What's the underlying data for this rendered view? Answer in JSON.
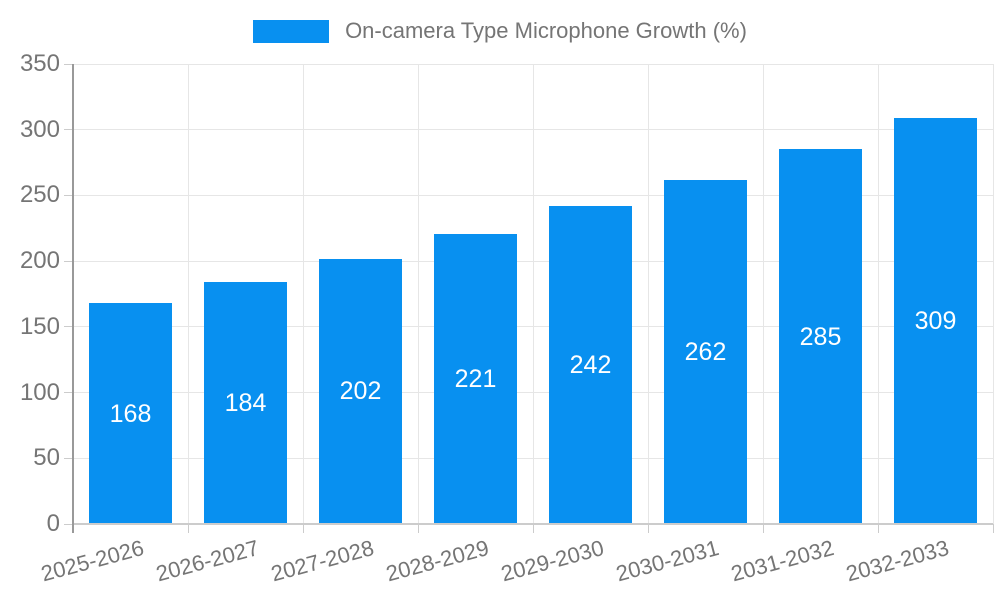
{
  "legend": {
    "label": "On-camera Type Microphone Growth (%)"
  },
  "chart_data": {
    "type": "bar",
    "title": "On-camera Type Microphone Growth (%)",
    "categories": [
      "2025-2026",
      "2026-2027",
      "2027-2028",
      "2028-2029",
      "2029-2030",
      "2030-2031",
      "2031-2032",
      "2032-2033"
    ],
    "values": [
      168,
      184,
      202,
      221,
      242,
      262,
      285,
      309
    ],
    "xlabel": "",
    "ylabel": "",
    "ylim": [
      0,
      350
    ],
    "yticks": [
      0,
      50,
      100,
      150,
      200,
      250,
      300,
      350
    ],
    "grid": true,
    "legend_position": "top",
    "colors": {
      "bar": "#0890F0",
      "bar_label": "#ffffff",
      "axis_text": "#757575",
      "gridline": "#e6e6e6",
      "y_axis_line": "#999999",
      "x_axis_line": "#cccccc",
      "tick": "#cccccc",
      "background": "#ffffff"
    }
  }
}
